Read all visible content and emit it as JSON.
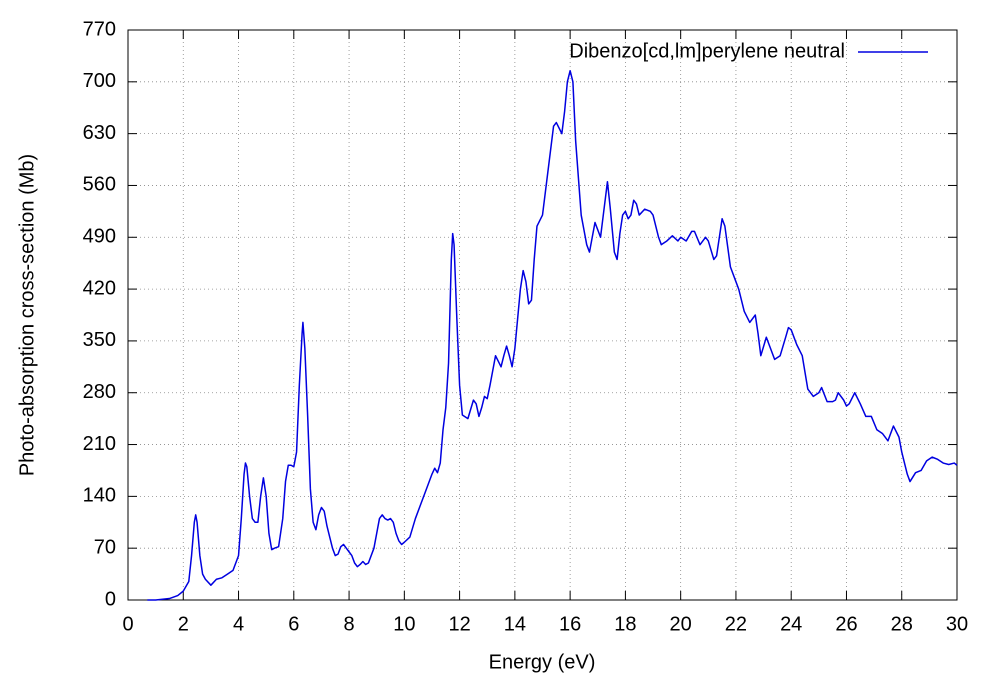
{
  "chart_data": {
    "type": "line",
    "xlabel": "Energy (eV)",
    "ylabel": "Photo-absorption cross-section (Mb)",
    "xlim": [
      0,
      30
    ],
    "ylim": [
      0,
      770
    ],
    "xticks": [
      0,
      2,
      4,
      6,
      8,
      10,
      12,
      14,
      16,
      18,
      20,
      22,
      24,
      26,
      28,
      30
    ],
    "yticks": [
      0,
      70,
      140,
      210,
      280,
      350,
      420,
      490,
      560,
      630,
      700,
      770
    ],
    "grid": true,
    "legend": "upper right",
    "x": [
      0.7,
      1.0,
      1.5,
      1.8,
      2.0,
      2.2,
      2.3,
      2.4,
      2.45,
      2.5,
      2.6,
      2.7,
      2.8,
      3.0,
      3.2,
      3.4,
      3.6,
      3.8,
      4.0,
      4.1,
      4.2,
      4.25,
      4.3,
      4.4,
      4.5,
      4.6,
      4.7,
      4.8,
      4.9,
      5.0,
      5.1,
      5.2,
      5.3,
      5.45,
      5.6,
      5.7,
      5.8,
      5.9,
      6.0,
      6.1,
      6.2,
      6.3,
      6.33,
      6.4,
      6.5,
      6.6,
      6.7,
      6.8,
      6.9,
      7.0,
      7.1,
      7.2,
      7.3,
      7.4,
      7.5,
      7.6,
      7.7,
      7.8,
      7.9,
      8.0,
      8.1,
      8.2,
      8.3,
      8.4,
      8.5,
      8.6,
      8.7,
      8.9,
      9.0,
      9.1,
      9.2,
      9.3,
      9.4,
      9.5,
      9.6,
      9.7,
      9.8,
      9.9,
      10.0,
      10.2,
      10.4,
      10.6,
      10.8,
      11.0,
      11.1,
      11.2,
      11.3,
      11.4,
      11.5,
      11.6,
      11.7,
      11.75,
      11.8,
      11.9,
      12.0,
      12.1,
      12.3,
      12.5,
      12.6,
      12.7,
      12.8,
      12.9,
      13.0,
      13.1,
      13.3,
      13.5,
      13.6,
      13.7,
      13.8,
      13.9,
      14.0,
      14.2,
      14.3,
      14.4,
      14.5,
      14.6,
      14.7,
      14.8,
      15.0,
      15.2,
      15.4,
      15.5,
      15.7,
      15.8,
      15.9,
      16.0,
      16.1,
      16.2,
      16.4,
      16.5,
      16.6,
      16.7,
      16.8,
      16.9,
      17.0,
      17.1,
      17.2,
      17.35,
      17.45,
      17.6,
      17.7,
      17.8,
      17.9,
      18.0,
      18.1,
      18.2,
      18.3,
      18.4,
      18.5,
      18.7,
      18.9,
      19.0,
      19.2,
      19.3,
      19.5,
      19.7,
      19.9,
      20.0,
      20.2,
      20.4,
      20.5,
      20.7,
      20.9,
      21.0,
      21.2,
      21.3,
      21.5,
      21.6,
      21.8,
      22.0,
      22.1,
      22.3,
      22.5,
      22.7,
      22.8,
      22.9,
      23.1,
      23.2,
      23.4,
      23.6,
      23.8,
      23.9,
      24.0,
      24.2,
      24.4,
      24.6,
      24.8,
      25.0,
      25.1,
      25.3,
      25.5,
      25.6,
      25.7,
      25.9,
      26.0,
      26.1,
      26.3,
      26.5,
      26.7,
      26.9,
      27.1,
      27.3,
      27.5,
      27.7,
      27.9,
      28.0,
      28.2,
      28.3,
      28.5,
      28.7,
      28.9,
      29.1,
      29.3,
      29.5,
      29.7,
      29.9,
      30.0
    ],
    "series": [
      {
        "name": "Dibenzo[cd,lm]perylene neutral",
        "color": "#0000e0",
        "values": [
          0,
          0,
          2,
          6,
          12,
          25,
          60,
          105,
          115,
          105,
          60,
          35,
          28,
          20,
          28,
          30,
          35,
          40,
          60,
          110,
          170,
          185,
          180,
          140,
          110,
          105,
          105,
          140,
          165,
          140,
          90,
          68,
          70,
          72,
          110,
          160,
          182,
          182,
          180,
          200,
          290,
          360,
          375,
          340,
          250,
          150,
          105,
          95,
          115,
          125,
          120,
          100,
          85,
          70,
          60,
          62,
          72,
          75,
          70,
          65,
          60,
          50,
          45,
          48,
          52,
          48,
          50,
          70,
          90,
          110,
          115,
          110,
          108,
          110,
          105,
          90,
          80,
          75,
          78,
          85,
          110,
          130,
          150,
          170,
          178,
          172,
          185,
          230,
          260,
          320,
          460,
          495,
          480,
          380,
          290,
          250,
          245,
          270,
          265,
          248,
          260,
          275,
          272,
          290,
          330,
          315,
          330,
          343,
          330,
          315,
          340,
          420,
          445,
          430,
          400,
          405,
          460,
          505,
          520,
          580,
          640,
          645,
          630,
          660,
          700,
          715,
          700,
          620,
          520,
          500,
          480,
          470,
          490,
          510,
          500,
          490,
          520,
          565,
          530,
          470,
          460,
          495,
          520,
          525,
          515,
          520,
          540,
          535,
          520,
          528,
          525,
          520,
          490,
          480,
          485,
          492,
          485,
          490,
          485,
          498,
          498,
          480,
          490,
          485,
          460,
          465,
          515,
          505,
          450,
          430,
          420,
          390,
          375,
          385,
          360,
          330,
          355,
          345,
          325,
          330,
          355,
          368,
          365,
          345,
          330,
          285,
          275,
          280,
          287,
          268,
          268,
          270,
          280,
          270,
          262,
          265,
          280,
          265,
          248,
          248,
          230,
          225,
          215,
          235,
          220,
          200,
          170,
          160,
          172,
          175,
          188,
          193,
          190,
          185,
          183,
          185,
          182
        ]
      }
    ]
  }
}
